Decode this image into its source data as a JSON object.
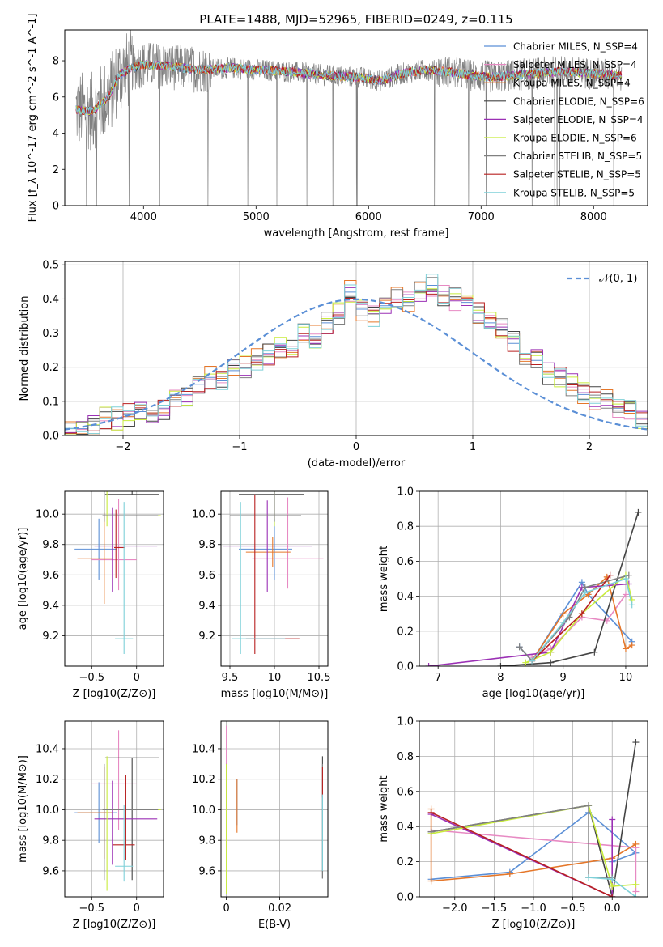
{
  "figure": {
    "title": "PLATE=1488, MJD=52965, FIBERID=0249, z=0.115"
  },
  "colors": {
    "c1": "#5b8fd6",
    "c2": "#e78ac3",
    "c3": "#e5772a",
    "c4": "#444444",
    "c5": "#9b30b5",
    "c6": "#c8ec3c",
    "c7": "#808080",
    "c8": "#b82020",
    "c9": "#7fd0d8"
  },
  "chart_data": [
    {
      "type": "line",
      "panel": "spectrum",
      "xlabel": "wavelength [Angstrom, rest frame]",
      "ylabel": "Flux [f_λ 10^-17 erg cm^-2 s^-1 A^-1]",
      "xlim": [
        3300,
        8480
      ],
      "ylim": [
        0,
        9.7
      ],
      "xticks": [
        4000,
        5000,
        6000,
        7000,
        8000
      ],
      "yticks": [
        0,
        2,
        4,
        6,
        8
      ],
      "grid": false,
      "legend_position": "top-right",
      "series": [
        {
          "name": "Chabrier MILES, N_SSP=4",
          "color": "#5b8fd6",
          "key": "c1"
        },
        {
          "name": "Salpeter MILES, N_SSP=4",
          "color": "#e78ac3",
          "key": "c2"
        },
        {
          "name": "Kroupa MILES, N_SSP=4",
          "color": "#e5772a",
          "key": "c3"
        },
        {
          "name": "Chabrier ELODIE, N_SSP=6",
          "color": "#444444",
          "key": "c4"
        },
        {
          "name": "Salpeter ELODIE, N_SSP=4",
          "color": "#9b30b5",
          "key": "c5"
        },
        {
          "name": "Kroupa ELODIE, N_SSP=6",
          "color": "#c8ec3c",
          "key": "c6"
        },
        {
          "name": "Chabrier STELIB, N_SSP=5",
          "color": "#808080",
          "key": "c7"
        },
        {
          "name": "Salpeter STELIB, N_SSP=5",
          "color": "#b82020",
          "key": "c8"
        },
        {
          "name": "Kroupa STELIB, N_SSP=5",
          "color": "#7fd0d8",
          "key": "c9"
        }
      ],
      "continuum": {
        "x": [
          3400,
          3550,
          3700,
          3780,
          3900,
          4000,
          4200,
          4500,
          4800,
          5000,
          5300,
          5600,
          5900,
          6100,
          6300,
          6500,
          6700,
          6900,
          7100,
          7300,
          7500,
          7700,
          8000,
          8200
        ],
        "y": [
          5.3,
          5.2,
          6.1,
          7.2,
          7.6,
          7.8,
          7.7,
          7.5,
          7.6,
          7.5,
          7.4,
          7.2,
          7.1,
          6.9,
          7.3,
          7.5,
          7.4,
          7.2,
          7.1,
          7.2,
          7.3,
          7.4,
          7.3,
          7.2
        ]
      },
      "data_trace_xrange": [
        3400,
        8250
      ],
      "data_trace_noise_y_range": [
        3.6,
        9.7
      ]
    },
    {
      "type": "line",
      "panel": "residual-distribution",
      "xlabel": "(data-model)/error",
      "ylabel": "Normed distribution",
      "xlim": [
        -2.5,
        2.5
      ],
      "ylim": [
        0,
        0.51
      ],
      "xticks": [
        -2,
        -1,
        0,
        1,
        2
      ],
      "yticks": [
        0.0,
        0.1,
        0.2,
        0.3,
        0.4,
        0.5
      ],
      "grid": true,
      "legend_position": "top-right",
      "reference_label": "𝒩(0, 1)",
      "reference_color": "#5b8fd6",
      "bin_edges_range": [
        -2.5,
        2.5
      ],
      "bin_width": 0.1,
      "hist_series_keys": [
        "c1",
        "c2",
        "c3",
        "c4",
        "c5",
        "c6",
        "c7",
        "c8",
        "c9"
      ],
      "hist_values_c1": [
        0.02,
        0.02,
        0.03,
        0.05,
        0.05,
        0.06,
        0.07,
        0.06,
        0.08,
        0.1,
        0.12,
        0.15,
        0.17,
        0.16,
        0.19,
        0.2,
        0.22,
        0.24,
        0.26,
        0.25,
        0.3,
        0.29,
        0.33,
        0.36,
        0.42,
        0.37,
        0.35,
        0.38,
        0.4,
        0.39,
        0.42,
        0.44,
        0.41,
        0.4,
        0.39,
        0.36,
        0.33,
        0.31,
        0.27,
        0.24,
        0.22,
        0.18,
        0.17,
        0.15,
        0.12,
        0.11,
        0.1,
        0.08,
        0.07,
        0.05
      ]
    },
    {
      "type": "scatter",
      "panel": "age-vs-Z",
      "xlabel": "Z [log10(Z/Z⊙)]",
      "ylabel": "age [log10(age/yr)]",
      "xlim": [
        -0.8,
        0.3
      ],
      "ylim": [
        9.0,
        10.15
      ],
      "xticks": [
        -0.5,
        0.0
      ],
      "yticks": [
        9.2,
        9.4,
        9.6,
        9.8,
        10.0
      ],
      "grid": true,
      "points": [
        {
          "key": "c1",
          "x": -0.42,
          "y": 9.77,
          "xerr": [
            0.27,
            0.2
          ],
          "yerr": [
            0.2,
            0.2
          ]
        },
        {
          "key": "c2",
          "x": -0.2,
          "y": 9.7,
          "xerr": [
            0.3,
            0.2
          ],
          "yerr": [
            0.2,
            0.4
          ]
        },
        {
          "key": "c3",
          "x": -0.36,
          "y": 9.71,
          "xerr": [
            0.3,
            0.1
          ],
          "yerr": [
            0.3,
            0.3
          ]
        },
        {
          "key": "c4",
          "x": -0.05,
          "y": 10.13,
          "xerr": [
            0.3,
            0.3
          ],
          "yerr": [
            0.0,
            1.07
          ]
        },
        {
          "key": "c5",
          "x": -0.27,
          "y": 9.79,
          "xerr": [
            0.2,
            0.5
          ],
          "yerr": [
            0.3,
            0.25
          ]
        },
        {
          "key": "c6",
          "x": -0.33,
          "y": 9.99,
          "xerr": [
            0.05,
            0.6
          ],
          "yerr": [
            0.07,
            0.8
          ]
        },
        {
          "key": "c7",
          "x": -0.36,
          "y": 9.99,
          "xerr": [
            0.02,
            0.6
          ],
          "yerr": [
            0.04,
            0.75
          ]
        },
        {
          "key": "c8",
          "x": -0.23,
          "y": 9.78,
          "xerr": [
            0.02,
            0.1
          ],
          "yerr": [
            0.2,
            0.25
          ]
        },
        {
          "key": "c9",
          "x": -0.14,
          "y": 9.18,
          "xerr": [
            0.1,
            0.1
          ],
          "yerr": [
            0.1,
            0.9
          ]
        }
      ]
    },
    {
      "type": "scatter",
      "panel": "age-vs-mass",
      "xlabel": "mass [log10(M/M⊙)]",
      "ylabel": "",
      "xlim": [
        9.4,
        10.6
      ],
      "ylim": [
        9.0,
        10.15
      ],
      "xticks": [
        9.5,
        10.0,
        10.5
      ],
      "yticks": [
        9.2,
        9.4,
        9.6,
        9.8,
        10.0
      ],
      "grid": true,
      "points": [
        {
          "key": "c1",
          "x": 10.0,
          "y": 9.77,
          "xerr": [
            0.4,
            0.2
          ],
          "yerr": [
            0.2,
            0.2
          ]
        },
        {
          "key": "c2",
          "x": 10.15,
          "y": 9.71,
          "xerr": [
            0.4,
            0.4
          ],
          "yerr": [
            0.2,
            0.4
          ]
        },
        {
          "key": "c3",
          "x": 9.98,
          "y": 9.75,
          "xerr": [
            0.3,
            0.2
          ],
          "yerr": [
            0.1,
            0.1
          ]
        },
        {
          "key": "c4",
          "x": 10.0,
          "y": 10.13,
          "xerr": [
            0.4,
            0.33
          ],
          "yerr": [
            0.0,
            1.07
          ]
        },
        {
          "key": "c5",
          "x": 9.92,
          "y": 9.79,
          "xerr": [
            0.5,
            0.5
          ],
          "yerr": [
            0.3,
            0.3
          ]
        },
        {
          "key": "c6",
          "x": 10.0,
          "y": 9.99,
          "xerr": [
            0.5,
            0.3
          ],
          "yerr": [
            0.07,
            0.8
          ]
        },
        {
          "key": "c7",
          "x": 10.0,
          "y": 9.99,
          "xerr": [
            0.5,
            0.3
          ],
          "yerr": [
            0.04,
            0.75
          ]
        },
        {
          "key": "c8",
          "x": 9.78,
          "y": 9.18,
          "xerr": [
            0.1,
            0.5
          ],
          "yerr": [
            0.1,
            0.95
          ]
        },
        {
          "key": "c9",
          "x": 9.62,
          "y": 9.18,
          "xerr": [
            0.1,
            0.5
          ],
          "yerr": [
            0.1,
            0.9
          ]
        }
      ]
    },
    {
      "type": "line",
      "panel": "mass-weight-vs-age",
      "xlabel": "age [log10(age/yr)]",
      "ylabel": "mass weight",
      "xlim": [
        6.7,
        10.35
      ],
      "ylim": [
        0,
        1.0
      ],
      "xticks": [
        7,
        8,
        9,
        10
      ],
      "yticks": [
        0.0,
        0.2,
        0.4,
        0.6,
        0.8,
        1.0
      ],
      "grid": true,
      "series": [
        {
          "key": "c1",
          "x": [
            8.3,
            8.5,
            9.3,
            9.4,
            10.1
          ],
          "y": [
            0.11,
            0.03,
            0.48,
            0.41,
            0.14
          ]
        },
        {
          "key": "c2",
          "x": [
            8.5,
            8.8,
            9.3,
            9.7,
            10.0
          ],
          "y": [
            0.05,
            0.1,
            0.28,
            0.26,
            0.41
          ]
        },
        {
          "key": "c3",
          "x": [
            8.5,
            9.0,
            9.4,
            9.7,
            10.0,
            10.1
          ],
          "y": [
            0.03,
            0.3,
            0.41,
            0.51,
            0.1,
            0.12
          ]
        },
        {
          "key": "c4",
          "x": [
            8.0,
            8.8,
            9.5,
            10.2
          ],
          "y": [
            0.0,
            0.02,
            0.08,
            0.88
          ]
        },
        {
          "key": "c5",
          "x": [
            6.85,
            8.8,
            9.3,
            10.05
          ],
          "y": [
            0.0,
            0.08,
            0.45,
            0.47
          ]
        },
        {
          "key": "c6",
          "x": [
            8.4,
            8.8,
            9.3,
            10.0,
            10.1
          ],
          "y": [
            0.02,
            0.08,
            0.3,
            0.52,
            0.38
          ]
        },
        {
          "key": "c7",
          "x": [
            8.3,
            8.5,
            9.1,
            9.35,
            10.05
          ],
          "y": [
            0.11,
            0.03,
            0.28,
            0.45,
            0.52
          ]
        },
        {
          "key": "c8",
          "x": [
            8.5,
            9.3,
            9.75
          ],
          "y": [
            0.03,
            0.3,
            0.52
          ]
        },
        {
          "key": "c9",
          "x": [
            8.5,
            9.0,
            9.35,
            10.0,
            10.1
          ],
          "y": [
            0.03,
            0.25,
            0.42,
            0.5,
            0.35
          ]
        }
      ]
    },
    {
      "type": "scatter",
      "panel": "mass-vs-Z",
      "xlabel": "Z [log10(Z/Z⊙)]",
      "ylabel": "mass [log10(M/M⊙)]",
      "xlim": [
        -0.8,
        0.3
      ],
      "ylim": [
        9.43,
        10.58
      ],
      "xticks": [
        -0.5,
        0.0
      ],
      "yticks": [
        9.6,
        9.8,
        10.0,
        10.2,
        10.4
      ],
      "grid": true,
      "points": [
        {
          "key": "c1",
          "x": -0.42,
          "y": 9.98,
          "xerr": [
            0.27,
            0.2
          ],
          "yerr": [
            0.2,
            0.2
          ]
        },
        {
          "key": "c2",
          "x": -0.2,
          "y": 10.17,
          "xerr": [
            0.3,
            0.2
          ],
          "yerr": [
            0.3,
            0.35
          ]
        },
        {
          "key": "c3",
          "x": -0.36,
          "y": 9.98,
          "xerr": [
            0.3,
            0.1
          ],
          "yerr": [
            0.3,
            0.3
          ]
        },
        {
          "key": "c4",
          "x": -0.05,
          "y": 10.34,
          "xerr": [
            0.3,
            0.3
          ],
          "yerr": [
            0.8,
            0.0
          ]
        },
        {
          "key": "c5",
          "x": -0.27,
          "y": 9.94,
          "xerr": [
            0.2,
            0.5
          ],
          "yerr": [
            0.3,
            0.25
          ]
        },
        {
          "key": "c6",
          "x": -0.33,
          "y": 10.0,
          "xerr": [
            0.05,
            0.6
          ],
          "yerr": [
            0.53,
            0.35
          ]
        },
        {
          "key": "c7",
          "x": -0.36,
          "y": 10.0,
          "xerr": [
            0.02,
            0.6
          ],
          "yerr": [
            0.46,
            0.3
          ]
        },
        {
          "key": "c8",
          "x": -0.12,
          "y": 9.77,
          "xerr": [
            0.15,
            0.1
          ],
          "yerr": [
            0.1,
            0.46
          ]
        },
        {
          "key": "c9",
          "x": -0.14,
          "y": 9.63,
          "xerr": [
            0.1,
            0.1
          ],
          "yerr": [
            0.1,
            0.4
          ]
        }
      ]
    },
    {
      "type": "scatter",
      "panel": "mass-vs-EBV",
      "xlabel": "E(B-V)",
      "ylabel": "",
      "xlim": [
        -0.002,
        0.038
      ],
      "ylim": [
        9.43,
        10.58
      ],
      "xticks": [
        0.0,
        0.02
      ],
      "yticks": [
        9.6,
        9.8,
        10.0,
        10.2,
        10.4
      ],
      "grid": true,
      "points": [
        {
          "key": "c1",
          "x": 0.004,
          "y": 10.0,
          "yerr": [
            0.1,
            0.2
          ]
        },
        {
          "key": "c2",
          "x": 0.0,
          "y": 10.1,
          "yerr": [
            0.35,
            0.45
          ]
        },
        {
          "key": "c3",
          "x": 0.004,
          "y": 9.95,
          "yerr": [
            0.1,
            0.25
          ]
        },
        {
          "key": "c4",
          "x": 0.036,
          "y": 10.0,
          "yerr": [
            0.45,
            0.35
          ]
        },
        {
          "key": "c5",
          "x": 0.0,
          "y": 10.2,
          "yerr": [
            0.2,
            0.1
          ]
        },
        {
          "key": "c6",
          "x": 0.0,
          "y": 10.0,
          "yerr": [
            0.55,
            0.3
          ]
        },
        {
          "key": "c7",
          "x": 0.036,
          "y": 9.9,
          "yerr": [
            0.35,
            0.4
          ]
        },
        {
          "key": "c8",
          "x": 0.036,
          "y": 10.18,
          "yerr": [
            0.1,
            0.1
          ]
        },
        {
          "key": "c9",
          "x": 0.036,
          "y": 9.8,
          "yerr": [
            0.2,
            0.3
          ]
        }
      ]
    },
    {
      "type": "line",
      "panel": "mass-weight-vs-Z",
      "xlabel": "Z [log10(Z/Z⊙)]",
      "ylabel": "mass weight",
      "xlim": [
        -2.45,
        0.45
      ],
      "ylim": [
        0,
        1.0
      ],
      "xticks": [
        -2.0,
        -1.5,
        -1.0,
        -0.5,
        0.0
      ],
      "yticks": [
        0.0,
        0.2,
        0.4,
        0.6,
        0.8,
        1.0
      ],
      "grid": true,
      "series": [
        {
          "key": "c1",
          "x": [
            -2.3,
            -1.3,
            -0.3,
            0.3,
            0.0
          ],
          "y": [
            0.1,
            0.14,
            0.48,
            0.25,
            0.2
          ]
        },
        {
          "key": "c2",
          "x": [
            -2.3,
            0.3,
            0.3
          ],
          "y": [
            0.38,
            0.28,
            0.03
          ]
        },
        {
          "key": "c3",
          "x": [
            -2.3,
            -2.3,
            -1.3,
            0.0,
            0.3
          ],
          "y": [
            0.5,
            0.09,
            0.13,
            0.22,
            0.3
          ]
        },
        {
          "key": "c4",
          "x": [
            -2.3,
            -0.3,
            0.0,
            0.3
          ],
          "y": [
            0.37,
            0.52,
            0.0,
            0.88
          ]
        },
        {
          "key": "c5",
          "x": [
            -2.3,
            0.0,
            0.0
          ],
          "y": [
            0.47,
            0.0,
            0.44
          ]
        },
        {
          "key": "c6",
          "x": [
            -2.3,
            -0.3,
            0.0,
            0.3
          ],
          "y": [
            0.36,
            0.52,
            0.06,
            0.07
          ]
        },
        {
          "key": "c7",
          "x": [
            -2.3,
            -0.3,
            -0.3,
            0.0
          ],
          "y": [
            0.37,
            0.52,
            0.11,
            0.11
          ]
        },
        {
          "key": "c8",
          "x": [
            -2.3,
            0.0
          ],
          "y": [
            0.48,
            0.0
          ]
        },
        {
          "key": "c9",
          "x": [
            -0.3,
            0.0,
            0.3
          ],
          "y": [
            0.11,
            0.1,
            0.0
          ]
        }
      ]
    }
  ]
}
